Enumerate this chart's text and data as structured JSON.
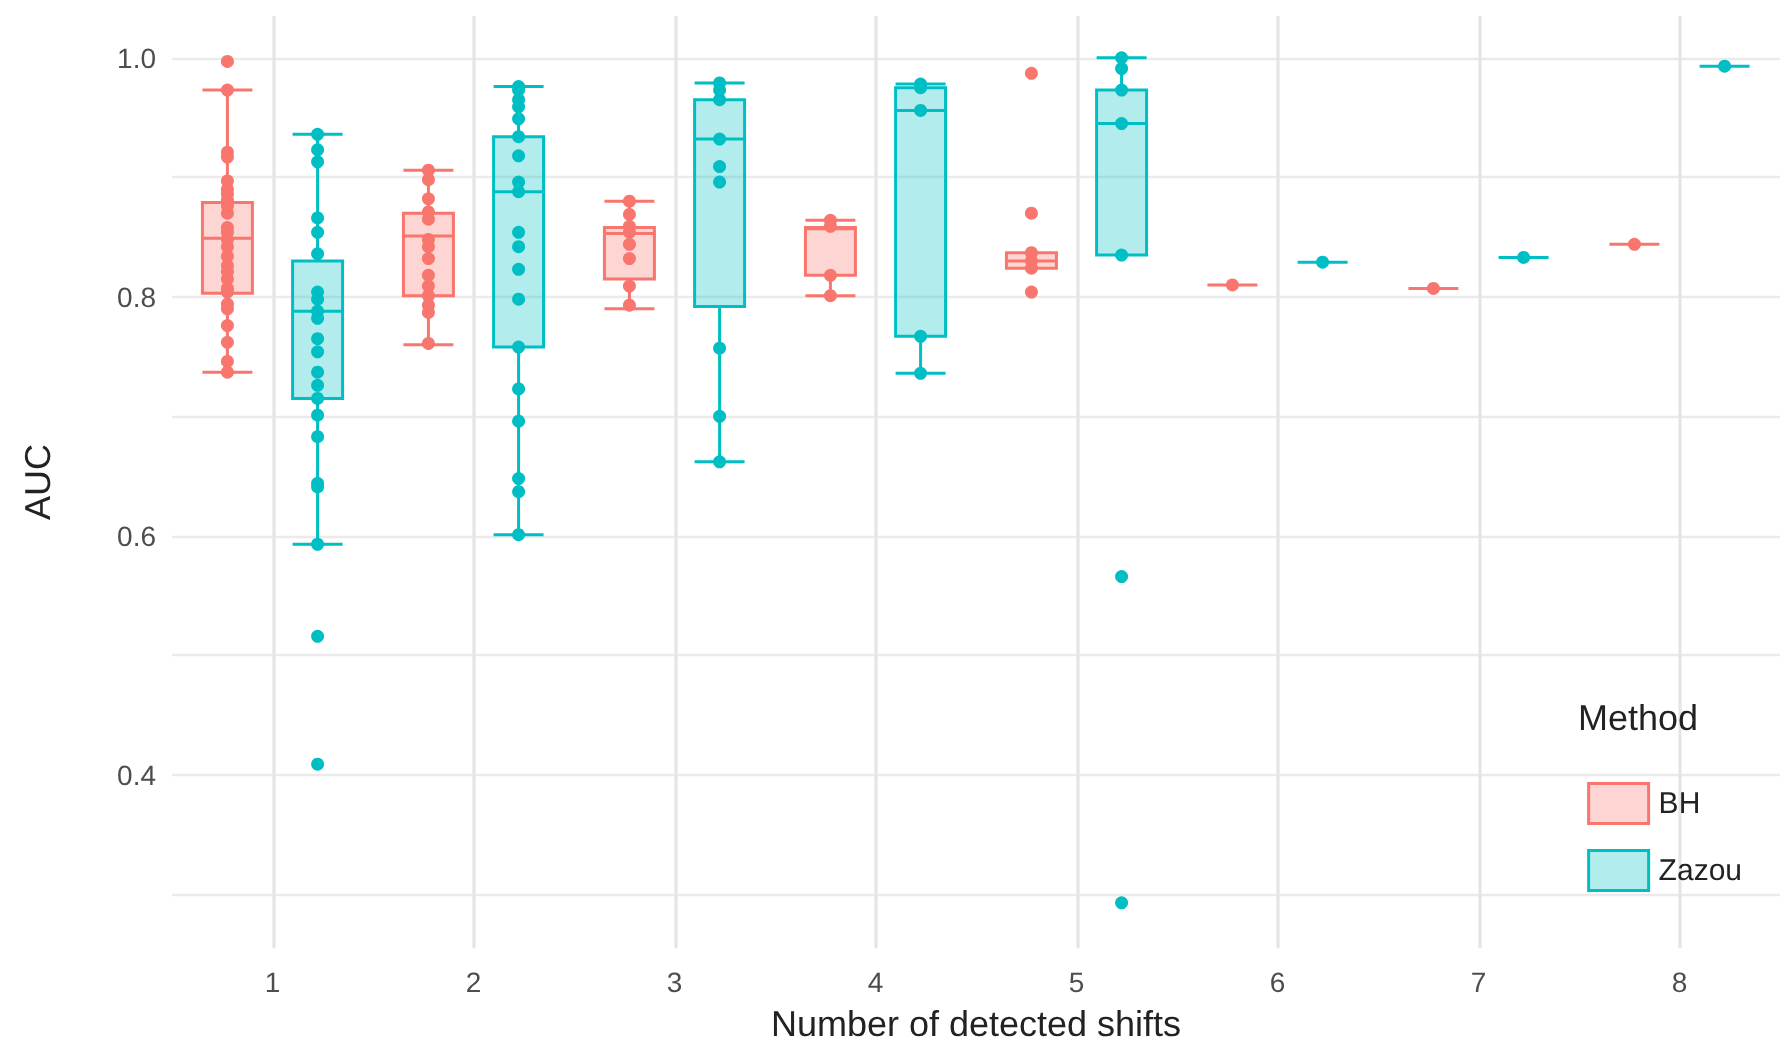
{
  "chart_data": {
    "type": "box",
    "xlabel": "Number of detected shifts",
    "ylabel": "AUC",
    "legend_title": "Method",
    "legend": "bottom right",
    "grid": true,
    "categories": [
      "1",
      "2",
      "3",
      "4",
      "5",
      "6",
      "7",
      "8"
    ],
    "ylim": [
      0.255,
      1.035
    ],
    "yticks": [
      {
        "value": 0.3,
        "label": null
      },
      {
        "value": 0.4,
        "label": "0.4"
      },
      {
        "value": 0.5,
        "label": null
      },
      {
        "value": 0.6,
        "label": "0.6"
      },
      {
        "value": 0.7,
        "label": null
      },
      {
        "value": 0.8,
        "label": "0.8"
      },
      {
        "value": 0.9,
        "label": null
      },
      {
        "value": 1.0,
        "label": "1.0"
      }
    ],
    "series": [
      {
        "name": "BH",
        "color": "#f8766d",
        "boxes": [
          {
            "low": 0.737,
            "q1": 0.803,
            "median": 0.849,
            "q3": 0.879,
            "high": 0.973
          },
          {
            "low": 0.76,
            "q1": 0.801,
            "median": 0.851,
            "q3": 0.87,
            "high": 0.906
          },
          {
            "low": 0.79,
            "q1": 0.815,
            "median": 0.853,
            "q3": 0.858,
            "high": 0.88
          },
          {
            "low": 0.801,
            "q1": 0.818,
            "median": 0.857,
            "q3": 0.858,
            "high": 0.864
          },
          {
            "low": 0.824,
            "q1": 0.824,
            "median": 0.83,
            "q3": 0.837,
            "high": 0.837
          },
          {
            "low": 0.81,
            "q1": 0.81,
            "median": 0.81,
            "q3": 0.81,
            "high": 0.81
          },
          {
            "low": 0.807,
            "q1": 0.807,
            "median": 0.807,
            "q3": 0.807,
            "high": 0.807
          },
          {
            "low": 0.844,
            "q1": 0.844,
            "median": 0.844,
            "q3": 0.844,
            "high": 0.844
          }
        ]
      },
      {
        "name": "Zazou",
        "color": "#00bfc4",
        "boxes": [
          {
            "low": 0.593,
            "q1": 0.715,
            "median": 0.788,
            "q3": 0.83,
            "high": 0.936
          },
          {
            "low": 0.601,
            "q1": 0.758,
            "median": 0.888,
            "q3": 0.934,
            "high": 0.976
          },
          {
            "low": 0.662,
            "q1": 0.792,
            "median": 0.932,
            "q3": 0.965,
            "high": 0.979
          },
          {
            "low": 0.736,
            "q1": 0.767,
            "median": 0.956,
            "q3": 0.975,
            "high": 0.978
          },
          {
            "low": 0.835,
            "q1": 0.835,
            "median": 0.945,
            "q3": 0.973,
            "high": 1.0
          },
          {
            "low": 0.829,
            "q1": 0.829,
            "median": 0.829,
            "q3": 0.829,
            "high": 0.829
          },
          {
            "low": 0.833,
            "q1": 0.833,
            "median": 0.833,
            "q3": 0.833,
            "high": 0.833
          },
          {
            "low": 0.993,
            "q1": 0.993,
            "median": 0.993,
            "q3": 0.993,
            "high": 0.993
          }
        ]
      },
      {
        "type": "scatter",
        "color": "#f8766d",
        "x": [
          "1",
          "1",
          "1",
          "1",
          "1",
          "1",
          "1",
          "1",
          "1",
          "1",
          "1",
          "1",
          "1",
          "1",
          "1",
          "1",
          "1",
          "1",
          "1",
          "1",
          "1",
          "1",
          "1",
          "1",
          "1",
          "1",
          "2",
          "2",
          "2",
          "2",
          "2",
          "2",
          "2",
          "2",
          "2",
          "2",
          "2",
          "2",
          "2",
          "2",
          "3",
          "3",
          "3",
          "3",
          "3",
          "3",
          "3",
          "3",
          "4",
          "4",
          "4",
          "4",
          "5",
          "5",
          "5",
          "5",
          "5",
          "5",
          "6",
          "7",
          "8"
        ],
        "values": [
          0.997,
          0.973,
          0.921,
          0.917,
          0.897,
          0.89,
          0.886,
          0.881,
          0.876,
          0.87,
          0.858,
          0.854,
          0.848,
          0.842,
          0.834,
          0.826,
          0.821,
          0.815,
          0.807,
          0.804,
          0.794,
          0.79,
          0.776,
          0.762,
          0.746,
          0.737,
          0.906,
          0.898,
          0.882,
          0.871,
          0.865,
          0.848,
          0.842,
          0.832,
          0.818,
          0.809,
          0.801,
          0.793,
          0.787,
          0.761,
          0.88,
          0.869,
          0.859,
          0.854,
          0.844,
          0.832,
          0.809,
          0.793,
          0.864,
          0.859,
          0.818,
          0.801,
          0.987,
          0.87,
          0.837,
          0.83,
          0.824,
          0.804,
          0.81,
          0.807,
          0.844
        ]
      },
      {
        "type": "scatter",
        "color": "#00bfc4",
        "x": [
          "1",
          "1",
          "1",
          "1",
          "1",
          "1",
          "1",
          "1",
          "1",
          "1",
          "1",
          "1",
          "1",
          "1",
          "1",
          "1",
          "1",
          "1",
          "1",
          "1",
          "1",
          "1",
          "2",
          "2",
          "2",
          "2",
          "2",
          "2",
          "2",
          "2",
          "2",
          "2",
          "2",
          "2",
          "2",
          "2",
          "2",
          "2",
          "2",
          "2",
          "2",
          "3",
          "3",
          "3",
          "3",
          "3",
          "3",
          "3",
          "3",
          "3",
          "4",
          "4",
          "4",
          "4",
          "4",
          "5",
          "5",
          "5",
          "5",
          "5",
          "5",
          "5",
          "6",
          "7",
          "8"
        ],
        "values": [
          0.936,
          0.923,
          0.913,
          0.866,
          0.854,
          0.836,
          0.804,
          0.798,
          0.788,
          0.782,
          0.765,
          0.754,
          0.737,
          0.726,
          0.715,
          0.701,
          0.683,
          0.644,
          0.641,
          0.593,
          0.516,
          0.409,
          0.976,
          0.973,
          0.965,
          0.959,
          0.949,
          0.934,
          0.918,
          0.896,
          0.888,
          0.854,
          0.842,
          0.823,
          0.798,
          0.758,
          0.723,
          0.696,
          0.648,
          0.637,
          0.601,
          0.979,
          0.973,
          0.965,
          0.932,
          0.909,
          0.896,
          0.757,
          0.7,
          0.662,
          0.978,
          0.975,
          0.956,
          0.767,
          0.736,
          1.0,
          0.991,
          0.973,
          0.945,
          0.835,
          0.566,
          0.293,
          0.829,
          0.833,
          0.993
        ]
      }
    ]
  }
}
